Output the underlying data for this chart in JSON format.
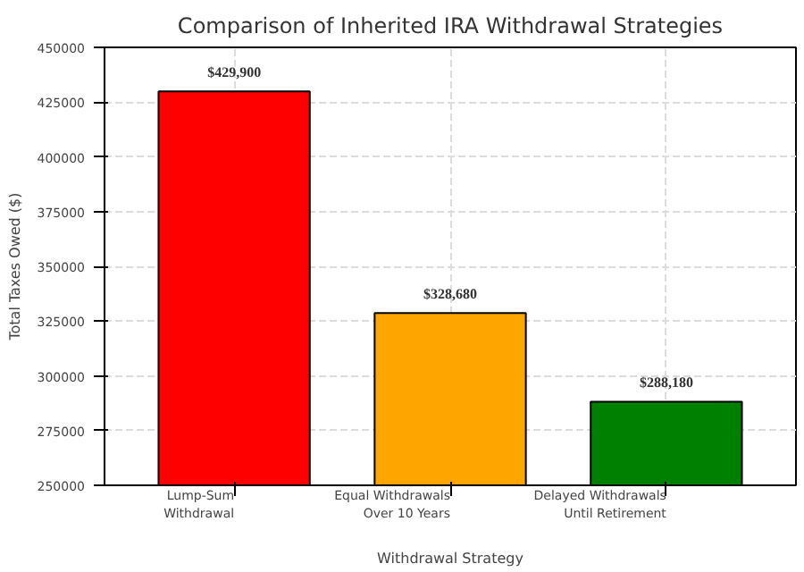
{
  "chart_data": {
    "type": "bar",
    "title": "Comparison of Inherited IRA Withdrawal Strategies",
    "xlabel": "Withdrawal Strategy",
    "ylabel": "Total Taxes Owed ($)",
    "categories": [
      "Lump-Sum\nWithdrawal",
      "Equal Withdrawals\nOver 10 Years",
      "Delayed Withdrawals\nUntil Retirement"
    ],
    "values": [
      429900,
      328680,
      288180
    ],
    "colors": [
      "#ff0000",
      "#ffa500",
      "#008000"
    ],
    "value_labels": [
      "$429,900",
      "$328,680",
      "$288,180"
    ],
    "ylim": [
      250000,
      450000
    ],
    "yticks": [
      250000,
      275000,
      300000,
      325000,
      350000,
      375000,
      400000,
      425000,
      450000
    ],
    "grid": true
  }
}
